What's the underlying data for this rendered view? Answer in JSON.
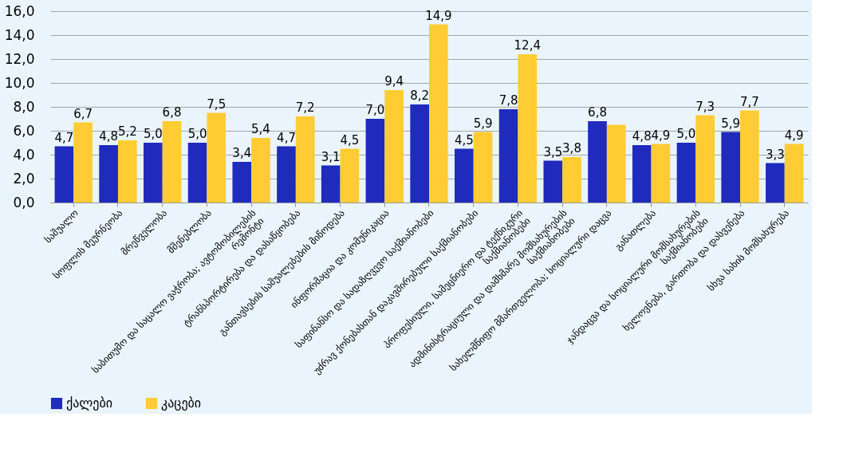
{
  "chart_data": {
    "type": "bar",
    "categories": [
      "საშუალო",
      "სოფლის მეურნეობა",
      "მრეწველობა",
      "მშენებლობა",
      "საბითუმო და საცალო ვაჭრობა; ავტომობილების რემონტი",
      "ტრანსპორტირება და დასაწყობება",
      "განთავსების საშუალებების  მიწოდება",
      "ინფორმაცია და კომუნიკაცია",
      "საფინანსო და სადაზღვევო საქმიანობები",
      "უძრავ ქონებასთან დაკავშირებული საქმიანობები",
      "პროფესიული, სამეცნიერო და ტექნიკური საქმიანობები",
      "ადმინისტრაციული და დამხმარე მომსახურების საქმიანობები",
      "სახელმწიფო მმართველობა; სოციალური დაცვა",
      "განათლება",
      "ჯანდაცვა და სოციალური მომსახურების საქმიანობები",
      "ხელოვნება, გართობა და დასვენება",
      "სხვა სახის მომსახურება"
    ],
    "series": [
      {
        "name": "ქალები",
        "color": "#1f2bbd",
        "values": [
          4.7,
          4.8,
          5.0,
          5.0,
          3.4,
          4.7,
          3.1,
          7.0,
          8.2,
          4.5,
          7.8,
          3.5,
          6.8,
          4.8,
          5.0,
          5.9,
          3.3
        ],
        "value_labels": [
          "4,7",
          "4,8",
          "5,0",
          "5,0",
          "3,4",
          "4,7",
          "3,1",
          "7,0",
          "8,2",
          "4,5",
          "7,8",
          "3,5",
          "6,8",
          "4,8",
          "5,0",
          "5,9",
          "3,3"
        ]
      },
      {
        "name": "კაცები",
        "color": "#ffcc33",
        "values": [
          6.7,
          5.2,
          6.8,
          7.5,
          5.4,
          7.2,
          4.5,
          9.4,
          14.9,
          5.9,
          12.4,
          3.8,
          6.5,
          4.9,
          7.3,
          7.7,
          4.9
        ],
        "value_labels": [
          "6,7",
          "5,2",
          "6,8",
          "7,5",
          "5,4",
          "7,2",
          "4,5",
          "9,4",
          "14,9",
          "5,9",
          "12,4",
          "3,8",
          null,
          "4,9",
          "7,3",
          "7,7",
          "4,9"
        ]
      }
    ],
    "ylim": [
      0,
      16
    ],
    "yticks": [
      {
        "value": 0,
        "label": "0,0"
      },
      {
        "value": 2,
        "label": "2,0"
      },
      {
        "value": 4,
        "label": "4,0"
      },
      {
        "value": 6,
        "label": "6,0"
      },
      {
        "value": 8,
        "label": "8,0"
      },
      {
        "value": 10,
        "label": "10,0"
      },
      {
        "value": 12,
        "label": "12,0"
      },
      {
        "value": 14,
        "label": "14,0"
      },
      {
        "value": 16,
        "label": "16,0"
      }
    ],
    "grid": "y",
    "legend": "bottom"
  }
}
